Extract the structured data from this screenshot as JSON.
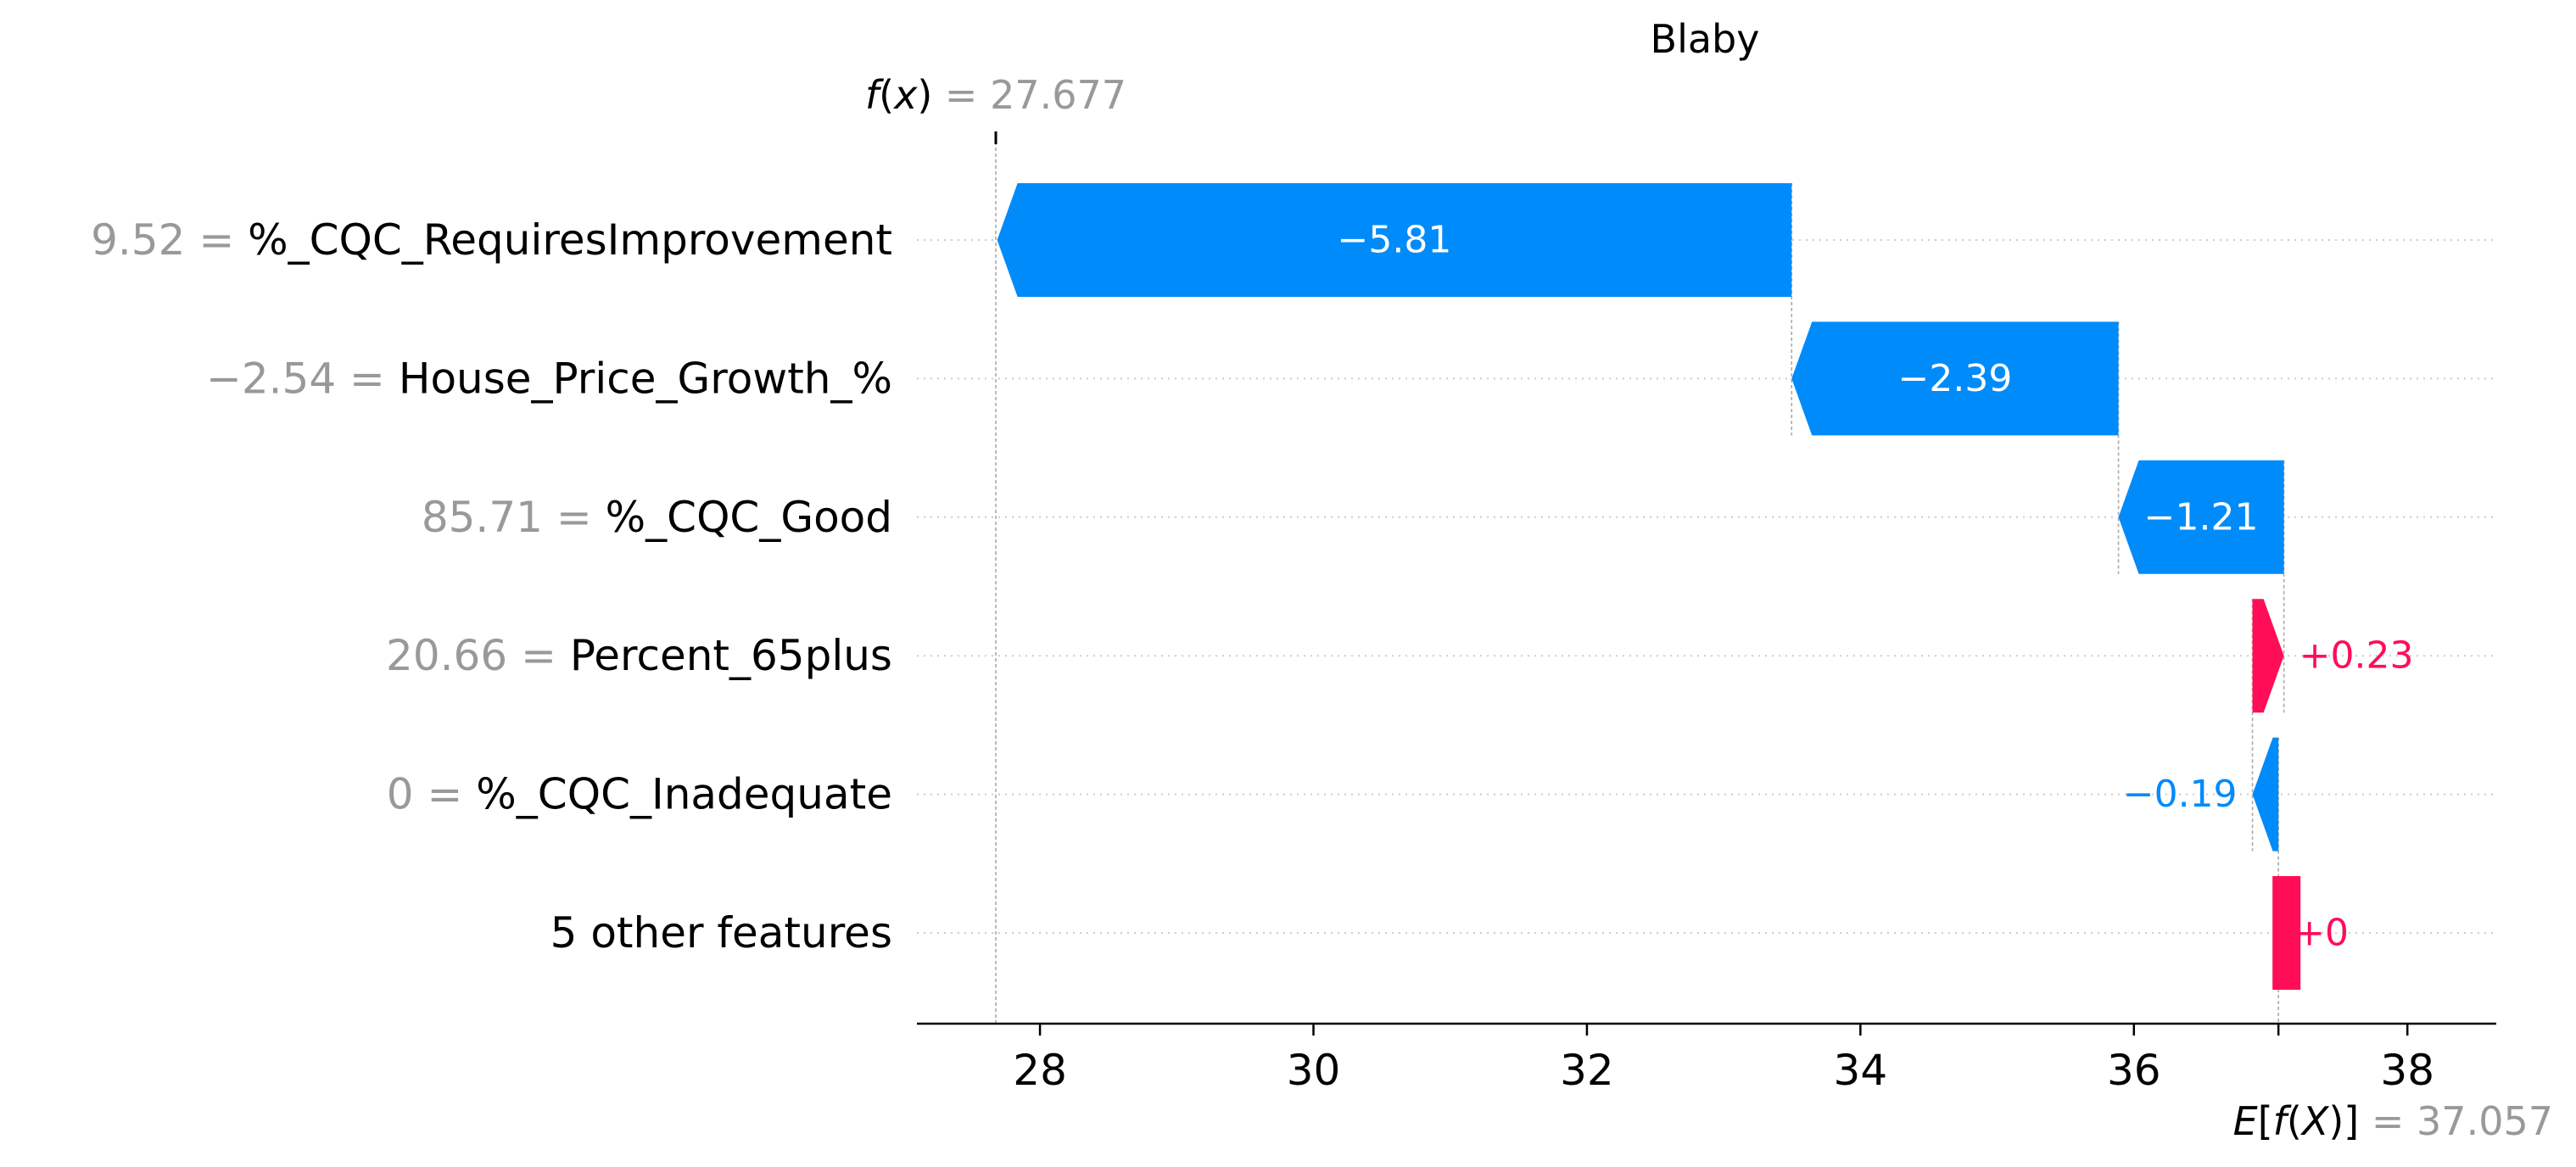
{
  "chart_data": {
    "type": "waterfall",
    "title": "Blaby",
    "fx": {
      "label_func": "f",
      "label_arg": "x",
      "value": 27.677,
      "value_text": "27.677"
    },
    "base": {
      "label_outer": "E",
      "label_func": "f",
      "label_arg": "X",
      "value": 37.057,
      "value_text": "37.057"
    },
    "features": [
      {
        "value": "9.52",
        "name": "%_CQC_RequiresImprovement",
        "contribution": -5.81,
        "label": "−5.81"
      },
      {
        "value": "−2.54",
        "name": "House_Price_Growth_%",
        "contribution": -2.39,
        "label": "−2.39"
      },
      {
        "value": "85.71",
        "name": "%_CQC_Good",
        "contribution": -1.21,
        "label": "−1.21"
      },
      {
        "value": "20.66",
        "name": "Percent_65plus",
        "contribution": 0.23,
        "label": "+0.23"
      },
      {
        "value": "0",
        "name": "%_CQC_Inadequate",
        "contribution": -0.19,
        "label": "−0.19"
      },
      {
        "value": "",
        "name": "5 other features",
        "contribution": 0.0,
        "label": "+0"
      }
    ],
    "x_ticks": [
      28,
      30,
      32,
      34,
      36,
      38
    ],
    "xlim": [
      27.1,
      38.65
    ],
    "colors": {
      "positive": "#ff0d57",
      "negative": "#008bfb",
      "muted": "#999999"
    }
  }
}
